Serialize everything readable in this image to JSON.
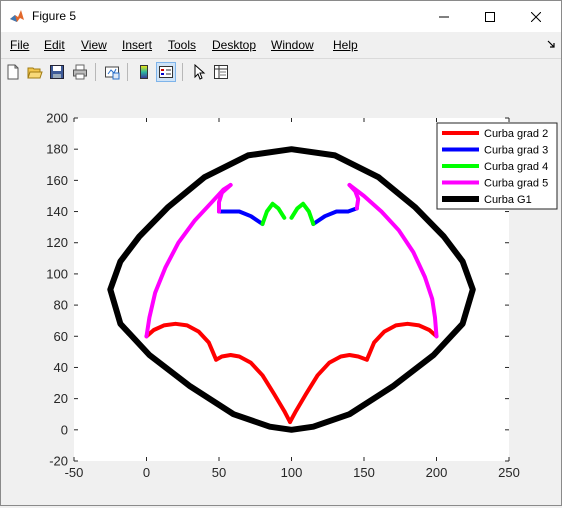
{
  "window": {
    "title": "Figure 5"
  },
  "menu": [
    "File",
    "Edit",
    "View",
    "Insert",
    "Tools",
    "Desktop",
    "Window",
    "Help"
  ],
  "menu_accel": [
    0,
    0,
    0,
    0,
    0,
    0,
    0,
    0
  ],
  "toolbar": {
    "icons": [
      "new-figure-icon",
      "open-file-icon",
      "save-icon",
      "print-icon",
      "link-plot-icon",
      "insert-colorbar-icon",
      "insert-legend-icon",
      "edit-plot-icon",
      "property-inspector-icon"
    ]
  },
  "colors": {
    "red": "#ff0000",
    "blue": "#0000ff",
    "green": "#00ff00",
    "magenta": "#ff00ff",
    "black": "#000000"
  },
  "chart_data": {
    "type": "line",
    "title": "",
    "xlabel": "",
    "ylabel": "",
    "xlim": [
      -50,
      250
    ],
    "ylim": [
      -20,
      200
    ],
    "xticks": [
      -50,
      0,
      50,
      100,
      150,
      200,
      250
    ],
    "yticks": [
      -20,
      0,
      20,
      40,
      60,
      80,
      100,
      120,
      140,
      160,
      180,
      200
    ],
    "legend_position": "top-right",
    "series": [
      {
        "name": "Curba grad 2",
        "color": "#ff0000",
        "segments": [
          [
            [
              0,
              60
            ],
            [
              5,
              64
            ],
            [
              12,
              67
            ],
            [
              20,
              68
            ],
            [
              28,
              67
            ],
            [
              36,
              63
            ],
            [
              43,
              56
            ],
            [
              48,
              45
            ]
          ],
          [
            [
              48,
              45
            ],
            [
              52,
              47
            ],
            [
              58,
              48
            ],
            [
              64,
              47
            ],
            [
              72,
              43
            ],
            [
              80,
              35
            ],
            [
              88,
              23
            ],
            [
              95,
              12
            ],
            [
              99,
              5
            ]
          ],
          [
            [
              99,
              5
            ],
            [
              103,
              12
            ],
            [
              110,
              23
            ],
            [
              118,
              35
            ],
            [
              126,
              43
            ],
            [
              134,
              47
            ],
            [
              140,
              48
            ],
            [
              146,
              47
            ],
            [
              152,
              45
            ]
          ],
          [
            [
              152,
              45
            ],
            [
              157,
              56
            ],
            [
              164,
              63
            ],
            [
              172,
              67
            ],
            [
              180,
              68
            ],
            [
              188,
              67
            ],
            [
              195,
              64
            ],
            [
              200,
              60
            ]
          ]
        ]
      },
      {
        "name": "Curba grad 3",
        "color": "#0000ff",
        "segments": [
          [
            [
              50,
              140
            ],
            [
              56,
              140
            ],
            [
              64,
              140
            ],
            [
              72,
              137
            ],
            [
              80,
              132
            ]
          ],
          [
            [
              115,
              132
            ],
            [
              123,
              137
            ],
            [
              131,
              140
            ],
            [
              139,
              140
            ],
            [
              145,
              142
            ]
          ]
        ]
      },
      {
        "name": "Curba grad 4",
        "color": "#00ff00",
        "segments": [
          [
            [
              80,
              132
            ],
            [
              83,
              140
            ],
            [
              87,
              145
            ],
            [
              91,
              142
            ],
            [
              95,
              136
            ]
          ],
          [
            [
              100,
              136
            ],
            [
              104,
              142
            ],
            [
              108,
              145
            ],
            [
              112,
              140
            ],
            [
              115,
              132
            ]
          ]
        ]
      },
      {
        "name": "Curba grad 5",
        "color": "#ff00ff",
        "segments": [
          [
            [
              0,
              60
            ],
            [
              2,
              72
            ],
            [
              6,
              88
            ],
            [
              13,
              104
            ],
            [
              22,
              120
            ],
            [
              33,
              134
            ],
            [
              45,
              146
            ],
            [
              53,
              154
            ],
            [
              58,
              157
            ]
          ],
          [
            [
              58,
              157
            ],
            [
              52,
              152
            ],
            [
              50,
              146
            ],
            [
              50,
              140
            ]
          ],
          [
            [
              145,
              142
            ],
            [
              146,
              148
            ],
            [
              144,
              153
            ],
            [
              140,
              157
            ]
          ],
          [
            [
              140,
              157
            ],
            [
              150,
              150
            ],
            [
              162,
              140
            ],
            [
              174,
              128
            ],
            [
              184,
              114
            ],
            [
              192,
              98
            ],
            [
              197,
              84
            ],
            [
              199,
              72
            ],
            [
              200,
              60
            ]
          ]
        ]
      },
      {
        "name": "Curba G1",
        "color": "#000000",
        "segments": [
          [
            [
              100,
              180
            ],
            [
              130,
              176
            ],
            [
              160,
              162
            ],
            [
              185,
              143
            ],
            [
              205,
              124
            ],
            [
              218,
              108
            ],
            [
              225,
              90
            ],
            [
              218,
              68
            ],
            [
              198,
              48
            ],
            [
              170,
              28
            ],
            [
              140,
              10
            ],
            [
              115,
              2
            ],
            [
              100,
              0
            ],
            [
              85,
              2
            ],
            [
              60,
              10
            ],
            [
              30,
              28
            ],
            [
              2,
              48
            ],
            [
              -18,
              68
            ],
            [
              -25,
              90
            ],
            [
              -18,
              108
            ],
            [
              -5,
              124
            ],
            [
              15,
              143
            ],
            [
              40,
              162
            ],
            [
              70,
              176
            ],
            [
              100,
              180
            ]
          ]
        ]
      }
    ]
  }
}
